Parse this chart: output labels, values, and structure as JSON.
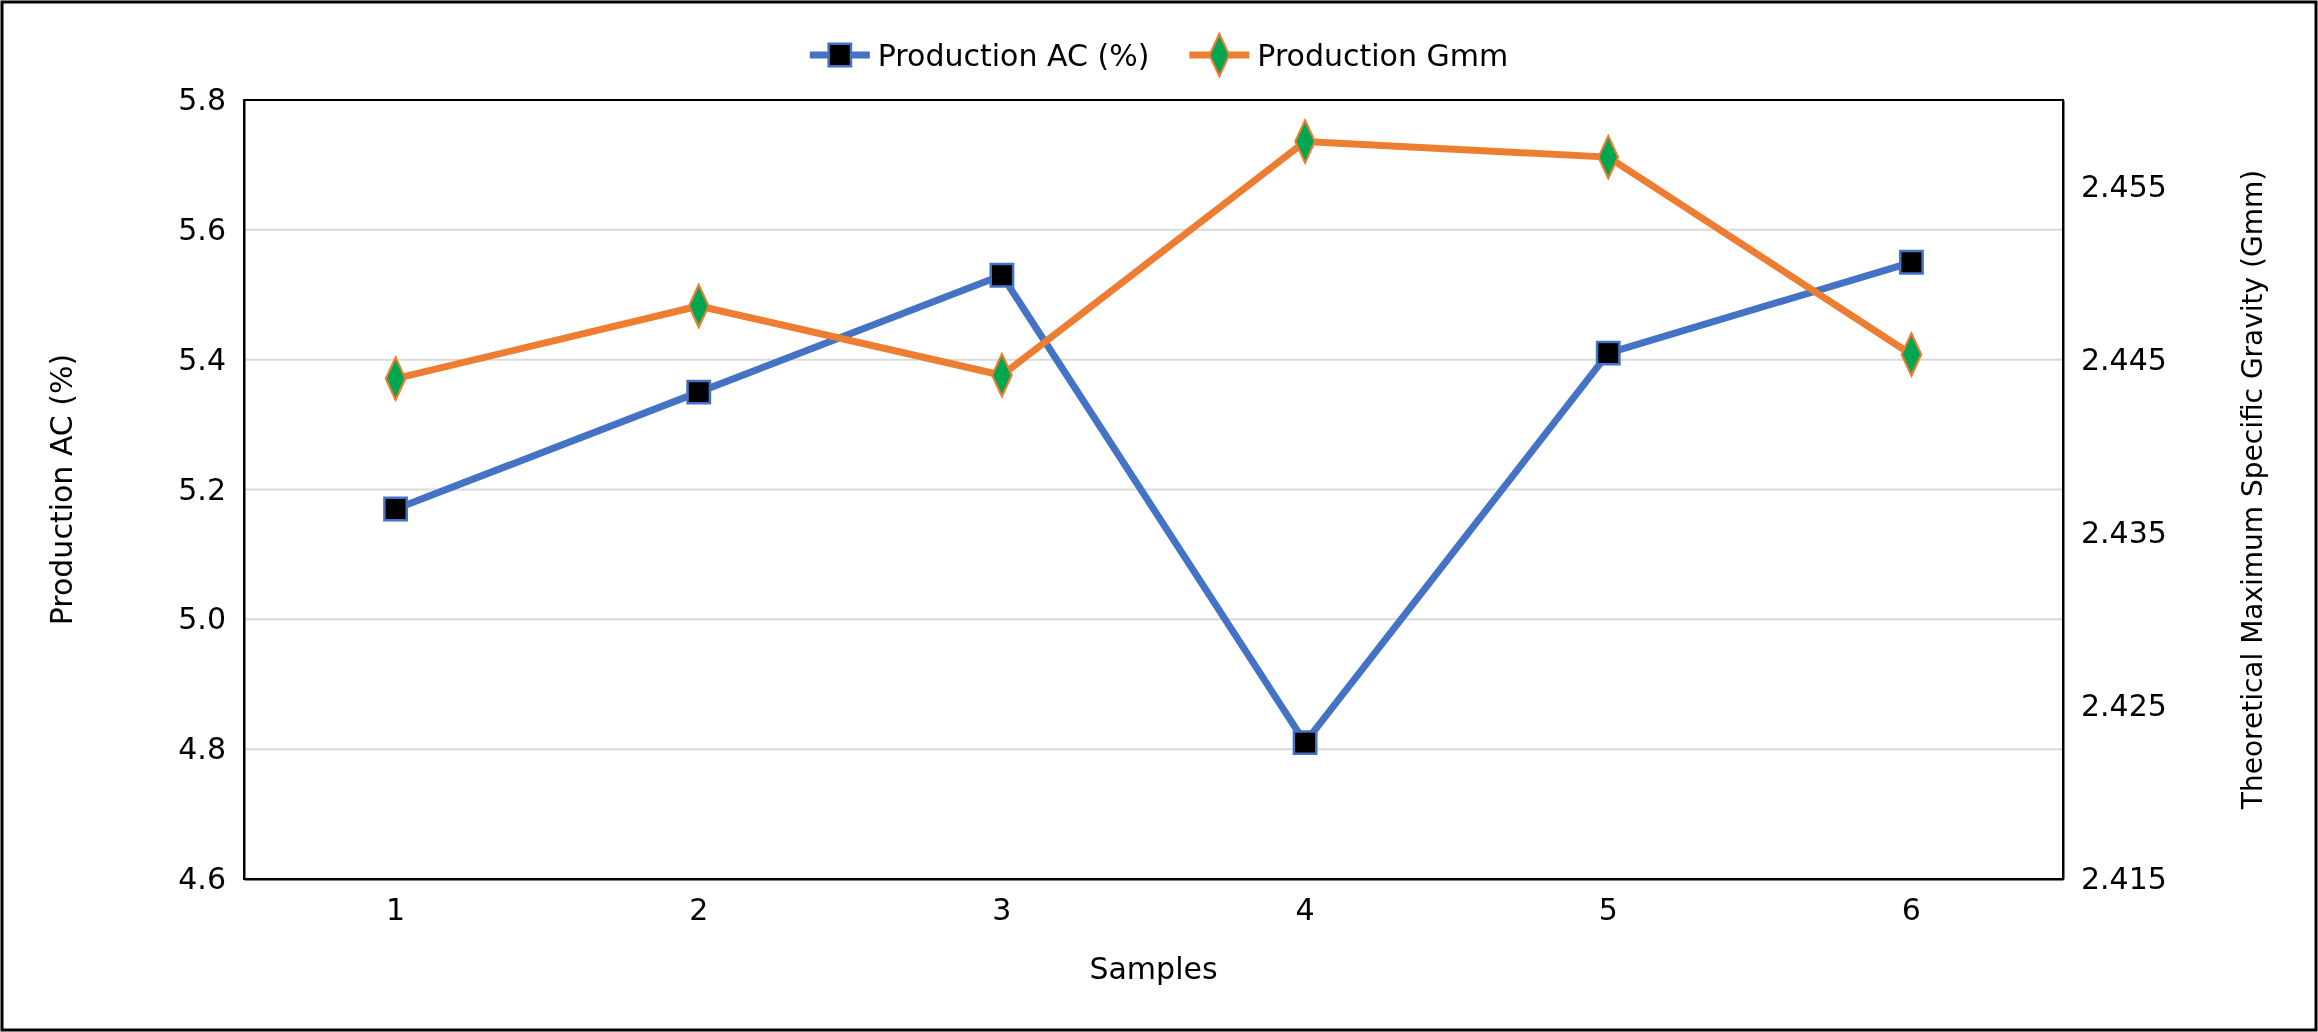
{
  "chart_data": {
    "type": "line",
    "xlabel": "Samples",
    "ylabel": "Production AC (%)",
    "y2label": "Theoretical Maximum Specific Gravity   (Gmm)",
    "categories": [
      "1",
      "2",
      "3",
      "4",
      "5",
      "6"
    ],
    "series": [
      {
        "name": "Production AC (%)",
        "color": "#4472c4",
        "marker": "square",
        "values": [
          5.17,
          5.35,
          5.53,
          4.81,
          5.41,
          5.55
        ]
      },
      {
        "name": "Production Gmm",
        "color": "#ed7d31",
        "marker": "diamond",
        "axis": "y2",
        "values": [
          2.4439,
          2.4481,
          2.4441,
          2.4576,
          2.4567,
          2.4453
        ]
      }
    ],
    "ylim": [
      4.6,
      5.8
    ],
    "yticks": [
      4.6,
      4.8,
      {
        "value": 5.0,
        "label": "5.0"
      },
      5.2,
      5.4,
      5.6,
      5.8
    ],
    "y2lim": [
      2.415,
      2.46
    ],
    "y2ticks": [
      2.415,
      2.425,
      2.435,
      2.445,
      2.455
    ],
    "grid": "y",
    "legend": "top",
    "line_style": "solid"
  }
}
